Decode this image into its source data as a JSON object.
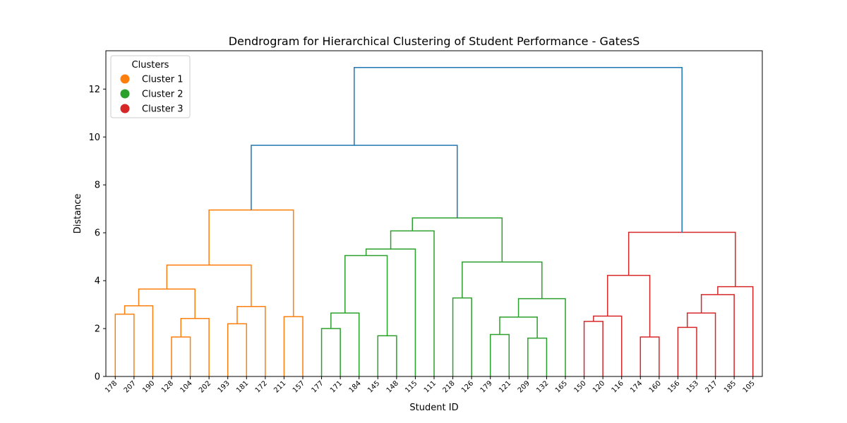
{
  "chart_data": {
    "type": "dendrogram",
    "title": "Dendrogram for Hierarchical Clustering of Student Performance - GatesS",
    "xlabel": "Student ID",
    "ylabel": "Distance",
    "ylim": [
      0,
      13.6
    ],
    "yticks": [
      0,
      2,
      4,
      6,
      8,
      10,
      12
    ],
    "grid": false,
    "leaves": [
      "178",
      "207",
      "190",
      "128",
      "104",
      "202",
      "193",
      "181",
      "172",
      "211",
      "157",
      "177",
      "171",
      "184",
      "145",
      "148",
      "115",
      "111",
      "218",
      "126",
      "179",
      "121",
      "209",
      "132",
      "165",
      "150",
      "120",
      "116",
      "174",
      "160",
      "156",
      "153",
      "217",
      "185",
      "105"
    ],
    "colors": {
      "cluster1": "#ff7f0e",
      "cluster2": "#2ca02c",
      "cluster3": "#d62728",
      "link_above": "#1f77b4"
    },
    "legend": {
      "title": "Clusters",
      "position": "upper-left",
      "entries": [
        {
          "label": "Cluster 1",
          "color": "#ff7f0e"
        },
        {
          "label": "Cluster 2",
          "color": "#2ca02c"
        },
        {
          "label": "Cluster 3",
          "color": "#d62728"
        }
      ]
    },
    "merges": [
      {
        "left": "178",
        "right": "207",
        "height": 2.6,
        "color": "#ff7f0e"
      },
      {
        "left": "178+207",
        "right": "190",
        "height": 2.95,
        "color": "#ff7f0e"
      },
      {
        "left": "128",
        "right": "104",
        "height": 1.65,
        "color": "#ff7f0e"
      },
      {
        "left": "128+104",
        "right": "202",
        "height": 2.42,
        "color": "#ff7f0e"
      },
      {
        "left": "178-190",
        "right": "128-202",
        "height": 3.65,
        "color": "#ff7f0e"
      },
      {
        "left": "193",
        "right": "181",
        "height": 2.2,
        "color": "#ff7f0e"
      },
      {
        "left": "193+181",
        "right": "172",
        "height": 2.92,
        "color": "#ff7f0e"
      },
      {
        "left": "178-202",
        "right": "193-172",
        "height": 4.65,
        "color": "#ff7f0e"
      },
      {
        "left": "211",
        "right": "157",
        "height": 2.5,
        "color": "#ff7f0e"
      },
      {
        "left": "178-172",
        "right": "211-157",
        "height": 6.95,
        "color": "#ff7f0e"
      },
      {
        "left": "177",
        "right": "171",
        "height": 2.0,
        "color": "#2ca02c"
      },
      {
        "left": "177+171",
        "right": "184",
        "height": 2.65,
        "color": "#2ca02c"
      },
      {
        "left": "145",
        "right": "148",
        "height": 1.7,
        "color": "#2ca02c"
      },
      {
        "left": "177-184",
        "right": "145-148",
        "height": 5.05,
        "color": "#2ca02c"
      },
      {
        "left": "177-148",
        "right": "115",
        "height": 5.32,
        "color": "#2ca02c"
      },
      {
        "left": "177-115",
        "right": "111",
        "height": 6.08,
        "color": "#2ca02c"
      },
      {
        "left": "218",
        "right": "126",
        "height": 3.28,
        "color": "#2ca02c"
      },
      {
        "left": "179",
        "right": "121",
        "height": 1.75,
        "color": "#2ca02c"
      },
      {
        "left": "209",
        "right": "132",
        "height": 1.6,
        "color": "#2ca02c"
      },
      {
        "left": "179-121",
        "right": "209-132",
        "height": 2.48,
        "color": "#2ca02c"
      },
      {
        "left": "179-132",
        "right": "165",
        "height": 3.25,
        "color": "#2ca02c"
      },
      {
        "left": "218-126",
        "right": "179-165",
        "height": 4.78,
        "color": "#2ca02c"
      },
      {
        "left": "177-111",
        "right": "218-165",
        "height": 6.62,
        "color": "#2ca02c"
      },
      {
        "left": "150",
        "right": "120",
        "height": 2.3,
        "color": "#d62728"
      },
      {
        "left": "150+120",
        "right": "116",
        "height": 2.52,
        "color": "#d62728"
      },
      {
        "left": "174",
        "right": "160",
        "height": 1.65,
        "color": "#d62728"
      },
      {
        "left": "150-116",
        "right": "174-160",
        "height": 4.22,
        "color": "#d62728"
      },
      {
        "left": "156",
        "right": "153",
        "height": 2.05,
        "color": "#d62728"
      },
      {
        "left": "156+153",
        "right": "217",
        "height": 2.65,
        "color": "#d62728"
      },
      {
        "left": "156-217",
        "right": "185",
        "height": 3.42,
        "color": "#d62728"
      },
      {
        "left": "156-185",
        "right": "105",
        "height": 3.75,
        "color": "#d62728"
      },
      {
        "left": "150-160",
        "right": "156-105",
        "height": 6.02,
        "color": "#d62728"
      },
      {
        "left": "cluster1",
        "right": "cluster2",
        "height": 9.65,
        "color": "#1f77b4"
      },
      {
        "left": "cluster1+2",
        "right": "cluster3",
        "height": 12.9,
        "color": "#1f77b4"
      }
    ]
  }
}
